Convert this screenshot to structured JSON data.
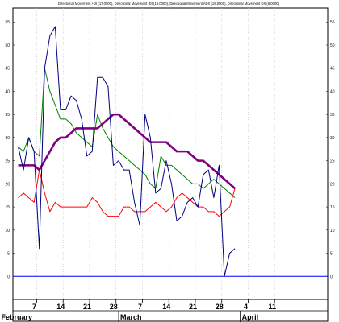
{
  "chart_data": {
    "type": "line",
    "title": "Directional Movement +DI (17.0000), Directional Movement -DI (19.0000), Directional Movement ADX (19.0000), Directional Movement DX (6.0000)",
    "xlabel": "",
    "ylabel": "",
    "ylim": [
      -5,
      58
    ],
    "y_ticks": [
      0,
      5,
      10,
      15,
      20,
      25,
      30,
      35,
      40,
      45,
      50,
      55
    ],
    "grid": "vertical dotted lines at weekly ticks",
    "legend": "none",
    "x": [
      1,
      2,
      3,
      4,
      5,
      6,
      7,
      8,
      9,
      10,
      11,
      12,
      13,
      14,
      15,
      16,
      17,
      18,
      19,
      20,
      21,
      22,
      23,
      24,
      25,
      26,
      27,
      28,
      29,
      30,
      31,
      32,
      33,
      34,
      35,
      36,
      37,
      38,
      39,
      40,
      41,
      42
    ],
    "x_tick_labels": [
      {
        "index": 4.5,
        "label": "7"
      },
      {
        "index": 9.5,
        "label": "14"
      },
      {
        "index": 14.5,
        "label": "21"
      },
      {
        "index": 19.5,
        "label": "28"
      },
      {
        "index": 24.5,
        "label": "7"
      },
      {
        "index": 29.5,
        "label": "14"
      },
      {
        "index": 34.5,
        "label": "21"
      },
      {
        "index": 39.5,
        "label": "28"
      },
      {
        "index": 44.5,
        "label": "4"
      },
      {
        "index": 49.5,
        "label": "11"
      }
    ],
    "month_labels": [
      {
        "index": 0,
        "label": "February"
      },
      {
        "index": 20,
        "label": "March"
      },
      {
        "index": 43,
        "label": "April"
      }
    ],
    "series": [
      {
        "name": "+DI",
        "color": "#008000",
        "values": [
          28,
          27,
          30,
          27,
          26,
          45,
          40,
          37,
          34,
          34,
          33,
          31,
          30,
          29,
          28,
          35,
          32,
          30,
          28,
          27,
          26,
          25,
          24,
          23,
          22,
          20,
          19,
          26,
          24,
          24,
          23,
          22,
          21,
          20,
          20,
          19,
          20,
          21,
          20,
          19,
          18,
          17
        ]
      },
      {
        "name": "-DI",
        "color": "#ff0000",
        "values": [
          17,
          18,
          17,
          16,
          23,
          18,
          14,
          16,
          15,
          15,
          15,
          15,
          15,
          15,
          17,
          16,
          14,
          13,
          13,
          13,
          15,
          15,
          14,
          14,
          14,
          15,
          16,
          15,
          14,
          15,
          17,
          18,
          17,
          16,
          15,
          15,
          14,
          14,
          13,
          14,
          15,
          19
        ]
      },
      {
        "name": "ADX",
        "color": "#800080",
        "values": [
          24,
          24,
          24,
          24,
          23,
          25,
          27,
          29,
          30,
          30,
          31,
          32,
          32,
          32,
          32,
          32,
          33,
          34,
          35,
          35,
          34,
          33,
          32,
          31,
          30,
          29,
          29,
          29,
          29,
          28,
          27,
          27,
          27,
          26,
          25,
          25,
          24,
          23,
          22,
          21,
          20,
          19
        ]
      },
      {
        "name": "DX",
        "color": "#000080",
        "values": [
          28,
          23,
          30,
          27,
          6,
          45,
          52,
          54,
          36,
          36,
          39,
          38,
          34,
          26,
          27,
          43,
          43,
          41,
          24,
          25,
          23,
          23,
          16,
          11,
          35,
          30,
          18,
          19,
          25,
          20,
          12,
          13,
          16,
          17,
          15,
          22,
          23,
          17,
          24,
          0,
          5,
          6
        ]
      }
    ],
    "zero_line_color": "#0000ff"
  }
}
